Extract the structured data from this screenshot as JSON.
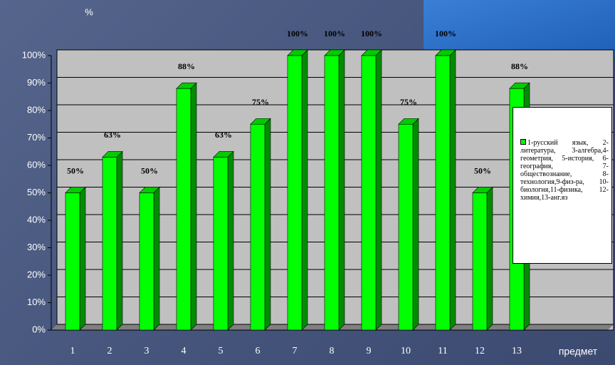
{
  "chart_data": {
    "type": "bar",
    "ylabel": "%",
    "xlabel": "предмет",
    "categories": [
      "1",
      "2",
      "3",
      "4",
      "5",
      "6",
      "7",
      "8",
      "9",
      "10",
      "11",
      "12",
      "13"
    ],
    "series": [
      {
        "name": "1-русский язык, 2-литература, 3-алгебра,4-геометрия, 5-история, 6-география, 7-обществознание, 8-технология,9-физ-ра, 10-биология,11-физика, 12-химия,13-анг.яз",
        "color": "#00ff00",
        "values": [
          50,
          63,
          50,
          88,
          63,
          75,
          100,
          100,
          100,
          75,
          100,
          50,
          88
        ],
        "value_labels": [
          "50%",
          "63%",
          "50%",
          "88%",
          "63%",
          "75%",
          "100%",
          "100%",
          "100%",
          "75%",
          "100%",
          "50%",
          "88%"
        ]
      }
    ],
    "ylim": [
      0,
      100
    ],
    "yticks": [
      {
        "value": 0,
        "label": "0%"
      },
      {
        "value": 10,
        "label": "10%"
      },
      {
        "value": 20,
        "label": "20%"
      },
      {
        "value": 30,
        "label": "30%"
      },
      {
        "value": 40,
        "label": "40%"
      },
      {
        "value": 50,
        "label": "50%"
      },
      {
        "value": 60,
        "label": "60%"
      },
      {
        "value": 70,
        "label": "70%"
      },
      {
        "value": 80,
        "label": "80%"
      },
      {
        "value": 90,
        "label": "90%"
      },
      {
        "value": 100,
        "label": "100%"
      }
    ],
    "grid": true
  }
}
